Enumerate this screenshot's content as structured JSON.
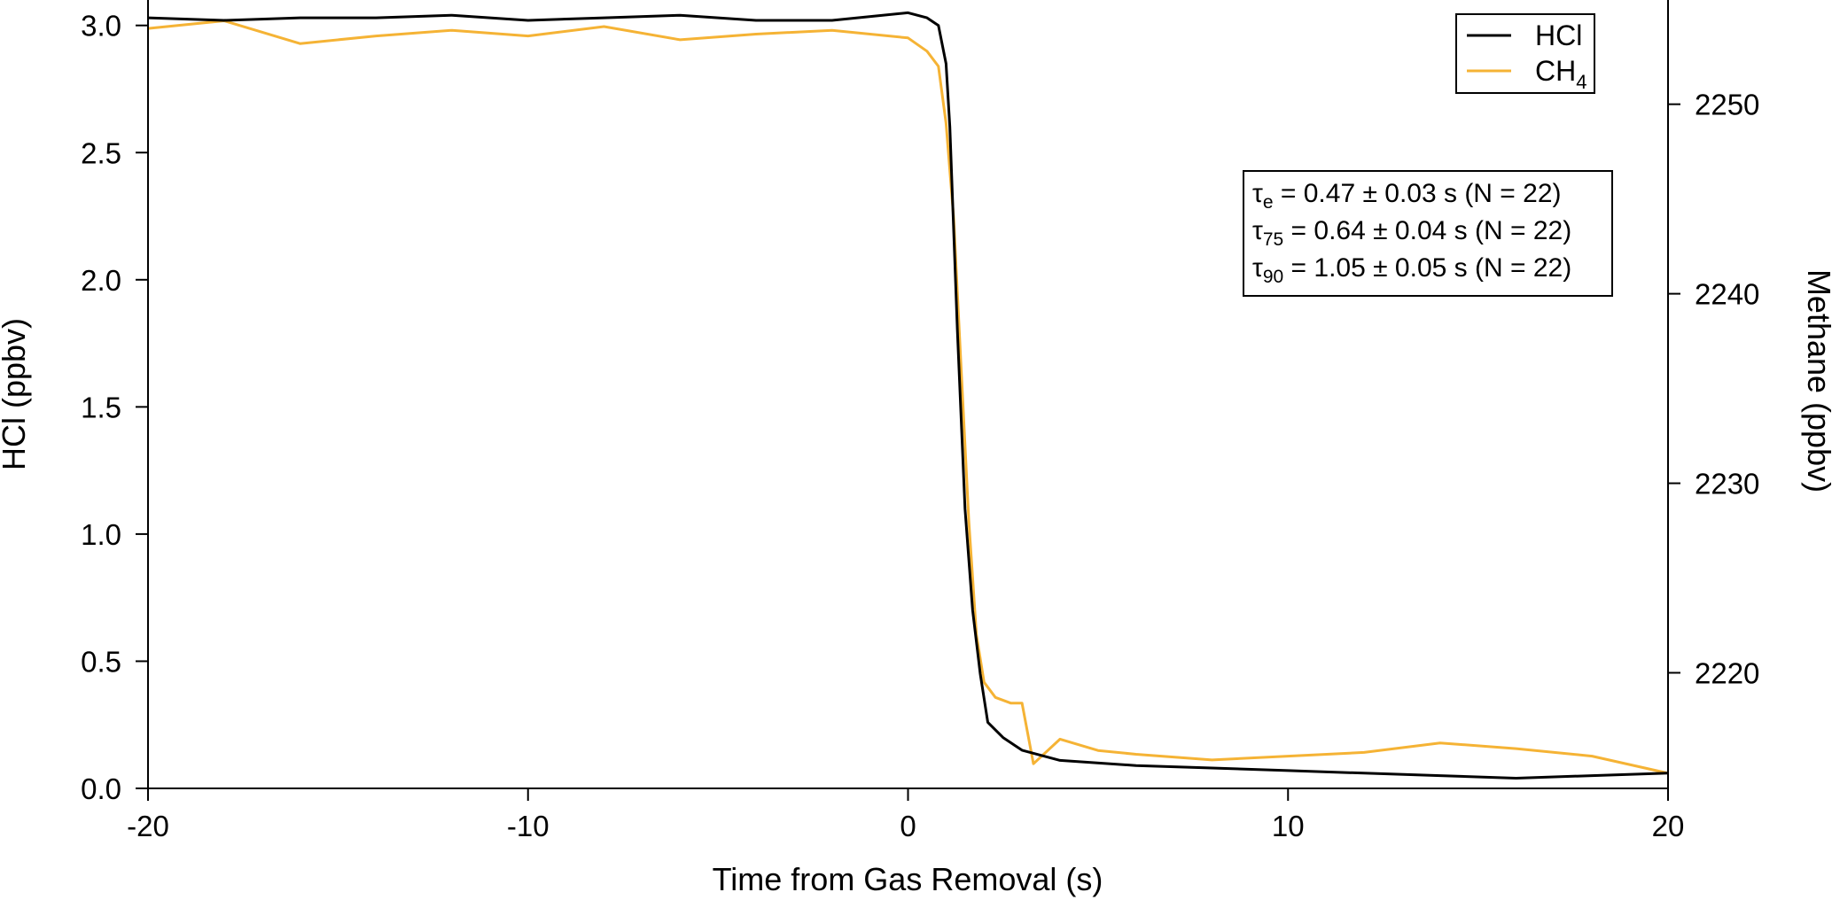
{
  "chart_data": {
    "type": "line",
    "xlabel": "Time from Gas Removal (s)",
    "ylabel_left": "HCl (ppbv)",
    "ylabel_right": "Methane (ppbv)",
    "xlim": [
      -20,
      20
    ],
    "ylim_left": [
      0,
      3.1
    ],
    "ylim_right": [
      2213.9,
      2255.5
    ],
    "x_ticks": [
      -20,
      -10,
      0,
      10,
      20
    ],
    "x_tick_labels": [
      "-20",
      "-10",
      "0",
      "10",
      "20"
    ],
    "y_left_ticks": [
      0,
      0.5,
      1.0,
      1.5,
      2.0,
      2.5,
      3.0
    ],
    "y_left_tick_labels": [
      "0.0",
      "0.5",
      "1.0",
      "1.5",
      "2.0",
      "2.5",
      "3.0"
    ],
    "y_right_ticks": [
      2220,
      2230,
      2240,
      2250
    ],
    "y_right_tick_labels": [
      "2220",
      "2230",
      "2240",
      "2250"
    ],
    "grid": false,
    "legend_position": "top-right",
    "series": [
      {
        "name": "HCl",
        "axis": "left",
        "color": "#000000",
        "x": [
          -20,
          -18,
          -16,
          -14,
          -12,
          -10,
          -8,
          -6,
          -4,
          -2,
          0,
          0.5,
          0.8,
          1.0,
          1.1,
          1.3,
          1.5,
          1.7,
          1.9,
          2.1,
          2.5,
          3.0,
          4.0,
          6.0,
          8.0,
          10.0,
          12.0,
          14.0,
          16.0,
          18.0,
          20.0
        ],
        "values": [
          3.03,
          3.02,
          3.03,
          3.03,
          3.04,
          3.02,
          3.03,
          3.04,
          3.02,
          3.02,
          3.05,
          3.03,
          3.0,
          2.85,
          2.6,
          1.8,
          1.1,
          0.7,
          0.45,
          0.26,
          0.2,
          0.15,
          0.11,
          0.09,
          0.08,
          0.07,
          0.06,
          0.05,
          0.04,
          0.05,
          0.06
        ]
      },
      {
        "name": "CH4",
        "axis": "right",
        "color": "#F5B335",
        "x": [
          -20,
          -18,
          -16,
          -14,
          -12,
          -10,
          -8,
          -6,
          -4,
          -2,
          0,
          0.5,
          0.8,
          1.0,
          1.2,
          1.4,
          1.6,
          1.8,
          2.0,
          2.3,
          2.7,
          3.0,
          3.3,
          4.0,
          5.0,
          6.0,
          8.0,
          10.0,
          12.0,
          14.0,
          16.0,
          18.0,
          20.0
        ],
        "values": [
          2254.0,
          2254.4,
          2253.2,
          2253.6,
          2253.9,
          2253.6,
          2254.1,
          2253.4,
          2253.7,
          2253.9,
          2253.5,
          2252.8,
          2252.0,
          2249.0,
          2244.0,
          2236.0,
          2228.0,
          2222.0,
          2219.5,
          2218.7,
          2218.4,
          2218.4,
          2215.2,
          2216.5,
          2215.9,
          2215.7,
          2215.4,
          2215.6,
          2215.8,
          2216.3,
          2216.0,
          2215.6,
          2214.7
        ]
      }
    ],
    "legend": [
      {
        "main": "HCl",
        "sub": ""
      },
      {
        "main": "CH",
        "sub": "4"
      }
    ],
    "annotations": [
      {
        "sym": "τ",
        "sub": "e",
        "text": " = 0.47 ± 0.03 s (N = 22)"
      },
      {
        "sym": "τ",
        "sub": "75",
        "text": " = 0.64 ± 0.04 s (N = 22)"
      },
      {
        "sym": "τ",
        "sub": "90",
        "text": " = 1.05 ± 0.05 s (N = 22)"
      }
    ]
  }
}
